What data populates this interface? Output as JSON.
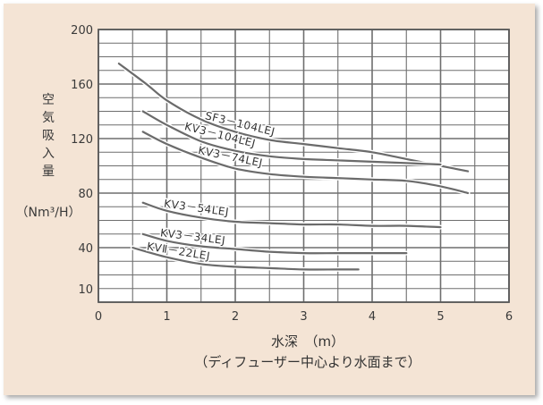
{
  "chart_data": {
    "type": "line",
    "ylabel": "空気吸入量",
    "yunit": "（Nm³/H）",
    "xlabel": "水深　（m）",
    "xlabel_sub": "（ディフューザー中心より水面まで）",
    "xlim": [
      0,
      6
    ],
    "ylim": [
      0,
      200
    ],
    "xticks": [
      0,
      1,
      2,
      3,
      4,
      5,
      6
    ],
    "yticks": [
      10,
      40,
      80,
      120,
      160,
      200
    ],
    "grid": true,
    "series": [
      {
        "name": "SF3－104LEJ",
        "x": [
          0.3,
          0.7,
          1.0,
          1.5,
          2.0,
          2.5,
          3.0,
          3.5,
          4.0,
          4.5,
          5.0,
          5.4
        ],
        "y": [
          175,
          160,
          148,
          134,
          125,
          119,
          116,
          113,
          110,
          105,
          100,
          96
        ]
      },
      {
        "name": "KV3－104LEJ",
        "x": [
          0.65,
          1.0,
          1.5,
          2.0,
          2.5,
          3.0,
          3.5,
          4.0,
          4.5,
          5.0
        ],
        "y": [
          140,
          130,
          118,
          111,
          107,
          105,
          104,
          103,
          102,
          101
        ]
      },
      {
        "name": "KV3－74LEJ",
        "x": [
          0.65,
          1.0,
          1.5,
          2.0,
          2.5,
          3.0,
          3.5,
          4.0,
          4.5,
          5.0,
          5.4
        ],
        "y": [
          125,
          116,
          106,
          98,
          94,
          92,
          91,
          90,
          89,
          85,
          80
        ]
      },
      {
        "name": "KV3－54LEJ",
        "x": [
          0.65,
          1.0,
          1.5,
          2.0,
          2.5,
          3.0,
          3.5,
          4.0,
          4.5,
          5.0
        ],
        "y": [
          73,
          67,
          62,
          59,
          58,
          57,
          57,
          56,
          56,
          55
        ]
      },
      {
        "name": "KV3－34LEJ",
        "x": [
          0.65,
          1.0,
          1.5,
          2.0,
          2.5,
          3.0,
          3.5,
          4.0,
          4.5
        ],
        "y": [
          50,
          45,
          41,
          39,
          37,
          36,
          36,
          36,
          36
        ]
      },
      {
        "name": "KVⅡ－22LEJ",
        "x": [
          0.5,
          1.0,
          1.5,
          2.0,
          2.5,
          3.0,
          3.5,
          3.8
        ],
        "y": [
          40,
          33,
          28,
          26,
          25,
          24,
          24,
          24
        ]
      }
    ]
  }
}
